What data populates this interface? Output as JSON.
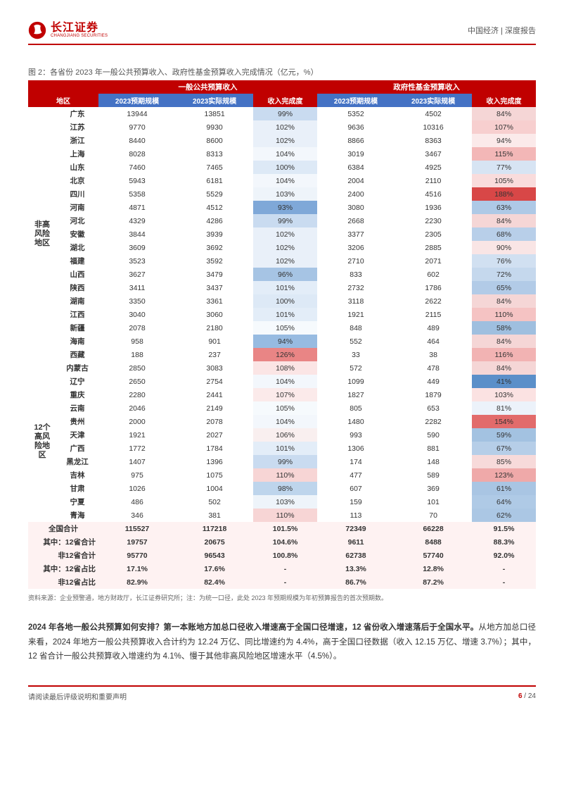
{
  "header": {
    "brand_cn": "长江证券",
    "brand_en": "CHANGJIANG SECURITIES",
    "right": "中国经济 | 深度报告"
  },
  "figure": {
    "caption": "图 2：各省份 2023 年一般公共预算收入、政府性基金预算收入完成情况（亿元，%）",
    "group1_title": "一般公共预算收入",
    "group2_title": "政府性基金预算收入",
    "col_region": "地区",
    "col_a": "2023预期规模",
    "col_b": "2023实际规模",
    "col_c": "收入完成度",
    "col_d": "2023预期规模",
    "col_e": "2023实际规模",
    "col_f": "收入完成度",
    "section1_label": "非高\n风险\n地区",
    "section2_label": "12个\n高风\n险地\n区",
    "rows1": [
      {
        "r": "广东",
        "a": "13944",
        "b": "13851",
        "c": "99%",
        "cc": "#c9dbf0",
        "d": "5352",
        "e": "4502",
        "f": "84%",
        "fc": "#f5d6d6"
      },
      {
        "r": "江苏",
        "a": "9770",
        "b": "9930",
        "c": "102%",
        "cc": "#e9f0f9",
        "d": "9636",
        "e": "10316",
        "f": "107%",
        "fc": "#f7cfcf"
      },
      {
        "r": "浙江",
        "a": "8440",
        "b": "8600",
        "c": "102%",
        "cc": "#e9f0f9",
        "d": "8866",
        "e": "8363",
        "f": "94%",
        "fc": "#fbeaea"
      },
      {
        "r": "上海",
        "a": "8028",
        "b": "8313",
        "c": "104%",
        "cc": "#f3f7fc",
        "d": "3019",
        "e": "3467",
        "f": "115%",
        "fc": "#f3b7b7"
      },
      {
        "r": "山东",
        "a": "7460",
        "b": "7465",
        "c": "100%",
        "cc": "#dde9f6",
        "d": "6384",
        "e": "4925",
        "f": "77%",
        "fc": "#d7e4f3"
      },
      {
        "r": "北京",
        "a": "5943",
        "b": "6181",
        "c": "104%",
        "cc": "#f3f7fc",
        "d": "2004",
        "e": "2110",
        "f": "105%",
        "fc": "#f9dcdc"
      },
      {
        "r": "四川",
        "a": "5358",
        "b": "5529",
        "c": "103%",
        "cc": "#eef4fa",
        "d": "2400",
        "e": "4516",
        "f": "188%",
        "fc": "#d84747"
      },
      {
        "r": "河南",
        "a": "4871",
        "b": "4512",
        "c": "93%",
        "cc": "#7fa8d8",
        "d": "3080",
        "e": "1936",
        "f": "63%",
        "fc": "#aec9e6"
      },
      {
        "r": "河北",
        "a": "4329",
        "b": "4286",
        "c": "99%",
        "cc": "#c9dbf0",
        "d": "2668",
        "e": "2230",
        "f": "84%",
        "fc": "#f5d6d6"
      },
      {
        "r": "安徽",
        "a": "3844",
        "b": "3939",
        "c": "102%",
        "cc": "#e9f0f9",
        "d": "3377",
        "e": "2305",
        "f": "68%",
        "fc": "#b8cfe9"
      },
      {
        "r": "湖北",
        "a": "3609",
        "b": "3692",
        "c": "102%",
        "cc": "#e9f0f9",
        "d": "3206",
        "e": "2885",
        "f": "90%",
        "fc": "#f9e5e5"
      },
      {
        "r": "福建",
        "a": "3523",
        "b": "3592",
        "c": "102%",
        "cc": "#e9f0f9",
        "d": "2710",
        "e": "2071",
        "f": "76%",
        "fc": "#d1e0f1"
      },
      {
        "r": "山西",
        "a": "3627",
        "b": "3479",
        "c": "96%",
        "cc": "#a6c4e4",
        "d": "833",
        "e": "602",
        "f": "72%",
        "fc": "#c5d8ed"
      },
      {
        "r": "陕西",
        "a": "3411",
        "b": "3437",
        "c": "101%",
        "cc": "#e3edf8",
        "d": "2732",
        "e": "1786",
        "f": "65%",
        "fc": "#b2cbe7"
      },
      {
        "r": "湖南",
        "a": "3350",
        "b": "3361",
        "c": "100%",
        "cc": "#dde9f6",
        "d": "3118",
        "e": "2622",
        "f": "84%",
        "fc": "#f5d6d6"
      },
      {
        "r": "江西",
        "a": "3040",
        "b": "3060",
        "c": "101%",
        "cc": "#e3edf8",
        "d": "1921",
        "e": "2115",
        "f": "110%",
        "fc": "#f5c3c3"
      },
      {
        "r": "新疆",
        "a": "2078",
        "b": "2180",
        "c": "105%",
        "cc": "#f6fafd",
        "d": "848",
        "e": "489",
        "f": "58%",
        "fc": "#9fbfdf"
      },
      {
        "r": "海南",
        "a": "958",
        "b": "901",
        "c": "94%",
        "cc": "#97bbe1",
        "d": "552",
        "e": "464",
        "f": "84%",
        "fc": "#f5d6d6"
      },
      {
        "r": "西藏",
        "a": "188",
        "b": "237",
        "c": "126%",
        "cc": "#e98585",
        "d": "33",
        "e": "38",
        "f": "116%",
        "fc": "#f2b3b3"
      }
    ],
    "rows2": [
      {
        "r": "内蒙古",
        "a": "2850",
        "b": "3083",
        "c": "108%",
        "cc": "#fbe5e5",
        "d": "572",
        "e": "478",
        "f": "84%",
        "fc": "#f5d6d6"
      },
      {
        "r": "辽宁",
        "a": "2650",
        "b": "2754",
        "c": "104%",
        "cc": "#f3f7fc",
        "d": "1099",
        "e": "449",
        "f": "41%",
        "fc": "#5b8fc9"
      },
      {
        "r": "重庆",
        "a": "2280",
        "b": "2441",
        "c": "107%",
        "cc": "#fbeaea",
        "d": "1827",
        "e": "1879",
        "f": "103%",
        "fc": "#fbe2e2"
      },
      {
        "r": "云南",
        "a": "2046",
        "b": "2149",
        "c": "105%",
        "cc": "#f6fafd",
        "d": "805",
        "e": "653",
        "f": "81%",
        "fc": "#ecf2fa"
      },
      {
        "r": "贵州",
        "a": "2000",
        "b": "2078",
        "c": "104%",
        "cc": "#f3f7fc",
        "d": "1480",
        "e": "2282",
        "f": "154%",
        "fc": "#e26b6b"
      },
      {
        "r": "天津",
        "a": "1921",
        "b": "2027",
        "c": "106%",
        "cc": "#f9efef",
        "d": "993",
        "e": "590",
        "f": "59%",
        "fc": "#a3c2e1"
      },
      {
        "r": "广西",
        "a": "1772",
        "b": "1784",
        "c": "101%",
        "cc": "#e3edf8",
        "d": "1306",
        "e": "881",
        "f": "67%",
        "fc": "#b6cee8"
      },
      {
        "r": "黑龙江",
        "a": "1407",
        "b": "1396",
        "c": "99%",
        "cc": "#c9dbf0",
        "d": "174",
        "e": "148",
        "f": "85%",
        "fc": "#f7dada"
      },
      {
        "r": "吉林",
        "a": "975",
        "b": "1075",
        "c": "110%",
        "cc": "#f7d5d5",
        "d": "477",
        "e": "589",
        "f": "123%",
        "fc": "#efa9a9"
      },
      {
        "r": "甘肃",
        "a": "1026",
        "b": "1004",
        "c": "98%",
        "cc": "#bed5ec",
        "d": "607",
        "e": "369",
        "f": "61%",
        "fc": "#a9c5e3"
      },
      {
        "r": "宁夏",
        "a": "486",
        "b": "502",
        "c": "103%",
        "cc": "#eef4fa",
        "d": "159",
        "e": "101",
        "f": "64%",
        "fc": "#afcae6"
      },
      {
        "r": "青海",
        "a": "346",
        "b": "381",
        "c": "110%",
        "cc": "#f7d5d5",
        "d": "113",
        "e": "70",
        "f": "62%",
        "fc": "#abc7e4"
      }
    ],
    "summary": [
      {
        "r": "全国合计",
        "a": "115527",
        "b": "117218",
        "c": "101.5%",
        "d": "72349",
        "e": "66228",
        "f": "91.5%"
      },
      {
        "r": "其中：12省合计",
        "a": "19757",
        "b": "20675",
        "c": "104.6%",
        "d": "9611",
        "e": "8488",
        "f": "88.3%"
      },
      {
        "r": "非12省合计",
        "a": "95770",
        "b": "96543",
        "c": "100.8%",
        "d": "62738",
        "e": "57740",
        "f": "92.0%"
      },
      {
        "r": "其中：12省占比",
        "a": "17.1%",
        "b": "17.6%",
        "c": "-",
        "d": "13.3%",
        "e": "12.8%",
        "f": "-"
      },
      {
        "r": "非12省占比",
        "a": "82.9%",
        "b": "82.4%",
        "c": "-",
        "d": "86.7%",
        "e": "87.2%",
        "f": "-"
      }
    ],
    "source": "资料来源：企业预警通，地方财政厅，长江证券研究所；注：为统一口径，此处 2023 年预期规模为年初预算报告的首次预期数。"
  },
  "body": {
    "p1_bold": "2024 年各地一般公共预算如何安排？第一本账地方加总口径收入增速高于全国口径增速，12 省份收入增速落后于全国水平。",
    "p1_rest": "从地方加总口径来看，2024 年地方一般公共预算收入合计约为 12.24 万亿、同比增速约为 4.4%，高于全国口径数据（收入 12.15 万亿、增速 3.7%）；其中，12 省合计一般公共预算收入增速约为 4.1%、慢于其他非高风险地区增速水平（4.5%）。"
  },
  "footer": {
    "left": "请阅读最后评级说明和重要声明",
    "page_cur": "6",
    "page_sep": " / ",
    "page_total": "24"
  },
  "colors": {
    "brand": "#c00000",
    "blue_hdr": "#4472c4"
  }
}
